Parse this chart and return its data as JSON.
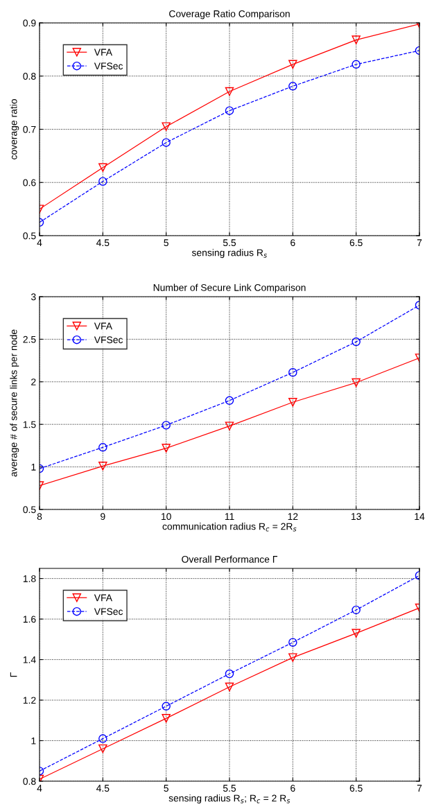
{
  "chart_data": [
    {
      "type": "line",
      "title": "Coverage Ratio Comparison",
      "xlabel": "sensing radius R$_{s}$",
      "ylabel": "coverage ratio",
      "x": [
        4,
        4.5,
        5,
        5.5,
        6,
        6.5,
        7
      ],
      "xlim": [
        4,
        7
      ],
      "xticks": [
        4,
        4.5,
        5,
        5.5,
        6,
        6.5,
        7
      ],
      "ylim": [
        0.5,
        0.9
      ],
      "yticks": [
        0.5,
        0.6,
        0.7,
        0.8,
        0.9
      ],
      "grid": true,
      "legend": "top left",
      "series": [
        {
          "name": "VFA",
          "color": "#ff0000",
          "marker": "triangle",
          "line_style": "solid",
          "values": [
            0.55,
            0.628,
            0.705,
            0.771,
            0.822,
            0.868,
            0.898
          ]
        },
        {
          "name": "VFSec",
          "color": "#0000ff",
          "marker": "circle",
          "line_style": "dashed",
          "values": [
            0.525,
            0.602,
            0.675,
            0.735,
            0.781,
            0.822,
            0.848
          ]
        }
      ]
    },
    {
      "type": "line",
      "title": "Number of Secure Link Comparison",
      "xlabel": "communication radius R$_{c}$ = 2R$_{s}$",
      "ylabel": "average # of secure links per node",
      "x": [
        8,
        9,
        10,
        11,
        12,
        13,
        14
      ],
      "xlim": [
        8,
        14
      ],
      "xticks": [
        8,
        9,
        10,
        11,
        12,
        13,
        14
      ],
      "ylim": [
        0.5,
        3
      ],
      "yticks": [
        0.5,
        1,
        1.5,
        2,
        2.5,
        3
      ],
      "grid": true,
      "legend": "top left",
      "series": [
        {
          "name": "VFA",
          "color": "#ff0000",
          "marker": "triangle",
          "line_style": "solid",
          "values": [
            0.78,
            1.01,
            1.22,
            1.48,
            1.76,
            1.99,
            2.28
          ]
        },
        {
          "name": "VFSec",
          "color": "#0000ff",
          "marker": "circle",
          "line_style": "dashed",
          "values": [
            0.98,
            1.23,
            1.49,
            1.78,
            2.11,
            2.47,
            2.9
          ]
        }
      ]
    },
    {
      "type": "line",
      "title": "Overall Performance Γ",
      "xlabel": "sensing radius R$_{s}$; R$_{c}$ = 2 R$_{s}$",
      "ylabel": "Γ",
      "x": [
        4,
        4.5,
        5,
        5.5,
        6,
        6.5,
        7
      ],
      "xlim": [
        4,
        7
      ],
      "xticks": [
        4,
        4.5,
        5,
        5.5,
        6,
        6.5,
        7
      ],
      "ylim": [
        0.8,
        1.85
      ],
      "yticks": [
        0.8,
        1,
        1.2,
        1.4,
        1.6,
        1.8
      ],
      "grid": true,
      "legend": "top left",
      "series": [
        {
          "name": "VFA",
          "color": "#ff0000",
          "marker": "triangle",
          "line_style": "solid",
          "values": [
            0.81,
            0.96,
            1.11,
            1.265,
            1.41,
            1.53,
            1.655
          ]
        },
        {
          "name": "VFSec",
          "color": "#0000ff",
          "marker": "circle",
          "line_style": "dashed",
          "values": [
            0.85,
            1.01,
            1.17,
            1.33,
            1.485,
            1.645,
            1.815
          ]
        }
      ]
    }
  ]
}
